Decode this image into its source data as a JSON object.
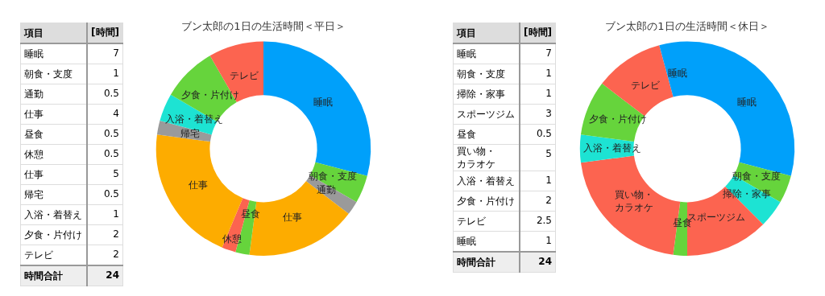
{
  "chart_data": [
    {
      "type": "other",
      "categories": [
        "睡眠",
        "朝食・支度",
        "通勤",
        "仕事",
        "昼食",
        "休憩",
        "仕事",
        "帰宅",
        "入浴・着替え",
        "夕食・片付け",
        "テレビ"
      ],
      "values": [
        7,
        1,
        0.5,
        4,
        0.5,
        0.5,
        5,
        0.5,
        1,
        2,
        2
      ],
      "data_labels": true,
      "annotations": [
        "項目",
        "[時間]",
        "時間合計",
        "24"
      ]
    },
    {
      "type": "donut",
      "title": "ブン太郎の1日の生活時間＜平日＞",
      "categories": [
        "睡眠",
        "朝食・支度",
        "通勤",
        "仕事",
        "昼食",
        "休憩",
        "仕事",
        "帰宅",
        "入浴・着替え",
        "夕食・片付け",
        "テレビ"
      ],
      "values": [
        29.1,
        4.2,
        2.1,
        16.7,
        2.1,
        2.1,
        20.8,
        2.1,
        4.2,
        8.3,
        8.3
      ],
      "colors": [
        "#00a0fa",
        "#66d43c",
        "#9a9a9a",
        "#fdac00",
        "#66d43c",
        "#fc6450",
        "#fdac00",
        "#9a9a9a",
        "#1de3d3",
        "#66d43c",
        "#fc6450"
      ],
      "legend": false
    },
    {
      "type": "other",
      "categories": [
        "睡眠",
        "朝食・支度",
        "掃除・家事",
        "スポーツジム",
        "昼食",
        "買い物・カラオケ",
        "入浴・着替え",
        "夕食・片付け",
        "テレビ",
        "睡眠"
      ],
      "values": [
        7,
        1,
        1,
        3,
        0.5,
        5,
        1,
        2,
        2.5,
        1
      ],
      "data_labels": true,
      "annotations": [
        "項目",
        "[時間]",
        "時間合計",
        "24"
      ]
    },
    {
      "type": "donut",
      "title": "ブン太郎の1日の生活時間＜休日＞",
      "categories": [
        "睡眠",
        "朝食・支度",
        "掃除・家事",
        "スポーツジム",
        "昼食",
        "買い物・カラオケ",
        "入浴・着替え",
        "夕食・片付け",
        "テレビ",
        "睡眠"
      ],
      "values": [
        29.1,
        4.2,
        4.2,
        12.5,
        2.1,
        20.8,
        4.2,
        8.3,
        10.4,
        4.2
      ],
      "colors": [
        "#00a0fa",
        "#66d43c",
        "#1de3d3",
        "#fc6450",
        "#66d43c",
        "#fc6450",
        "#1de3d3",
        "#66d43c",
        "#fc6450",
        "#00a0fa"
      ],
      "legend": false
    }
  ]
}
